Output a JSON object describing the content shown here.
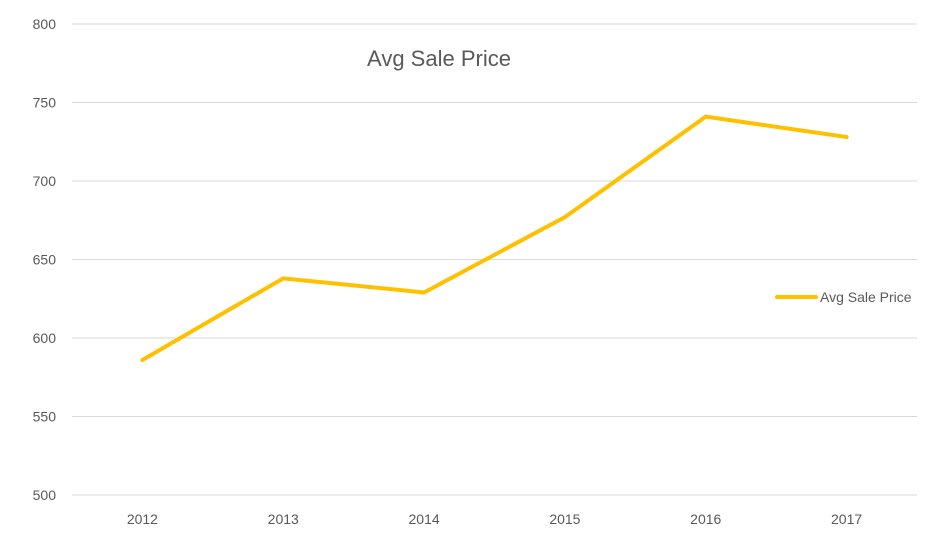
{
  "chart_data": {
    "type": "line",
    "title": "Avg Sale Price",
    "xlabel": "",
    "ylabel": "",
    "categories": [
      "2012",
      "2013",
      "2014",
      "2015",
      "2016",
      "2017"
    ],
    "series": [
      {
        "name": "Avg Sale Price",
        "values": [
          586,
          638,
          629,
          677,
          741,
          728
        ],
        "color": "#ffc000"
      }
    ],
    "ylim": [
      500,
      800
    ],
    "yticks": [
      "500",
      "550",
      "600",
      "650",
      "700",
      "750",
      "800"
    ],
    "grid": true,
    "legend": "right"
  }
}
